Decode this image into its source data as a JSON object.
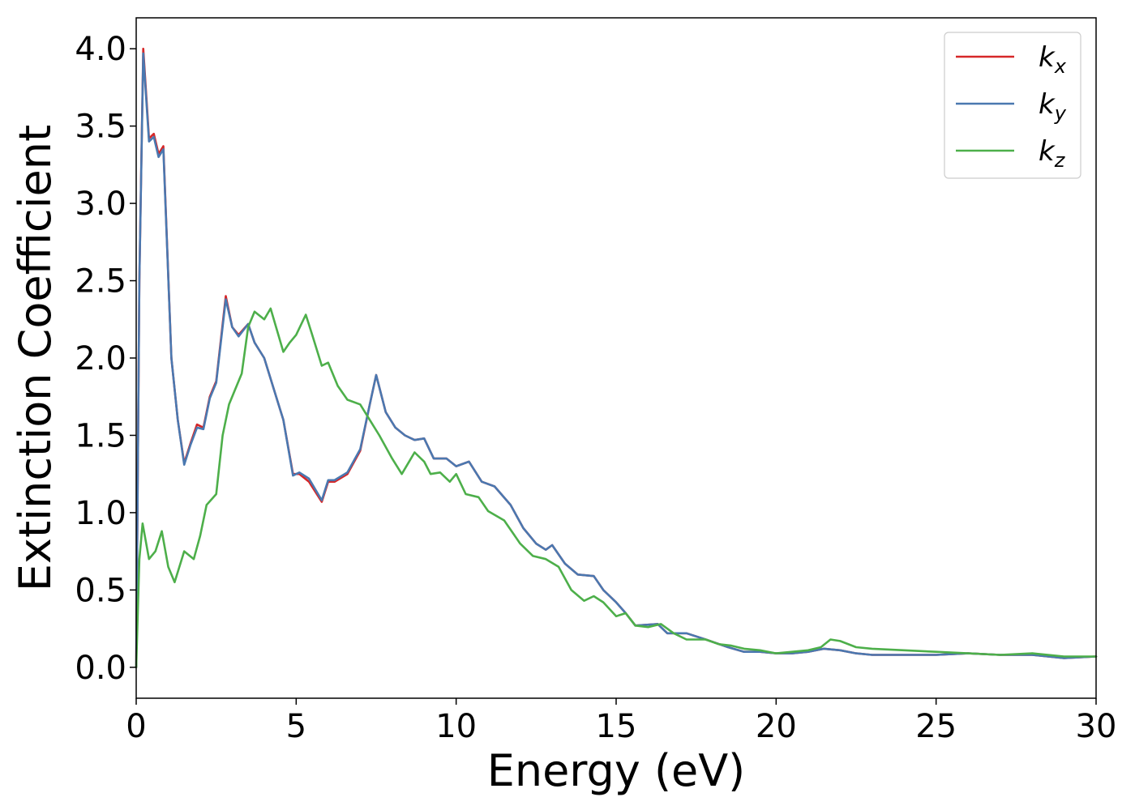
{
  "chart_data": {
    "type": "line",
    "xlabel": "Energy (eV)",
    "ylabel": "Extinction Coefficient",
    "xlim": [
      0,
      30
    ],
    "ylim": [
      -0.2,
      4.2
    ],
    "xticks": [
      0,
      5,
      10,
      15,
      20,
      25,
      30
    ],
    "xtick_labels": [
      "0",
      "5",
      "10",
      "15",
      "20",
      "25",
      "30"
    ],
    "yticks": [
      0.0,
      0.5,
      1.0,
      1.5,
      2.0,
      2.5,
      3.0,
      3.5,
      4.0
    ],
    "ytick_labels": [
      "0.0",
      "0.5",
      "1.0",
      "1.5",
      "2.0",
      "2.5",
      "3.0",
      "3.5",
      "4.0"
    ],
    "grid": false,
    "legend_position": "top-right",
    "series": [
      {
        "name": "k",
        "subscript": "x",
        "color": "#d62728",
        "points": [
          [
            0,
            0
          ],
          [
            0.1,
            2.5
          ],
          [
            0.22,
            4.0
          ],
          [
            0.4,
            3.42
          ],
          [
            0.55,
            3.45
          ],
          [
            0.7,
            3.32
          ],
          [
            0.85,
            3.37
          ],
          [
            1.1,
            2.0
          ],
          [
            1.3,
            1.6
          ],
          [
            1.5,
            1.32
          ],
          [
            1.7,
            1.45
          ],
          [
            1.9,
            1.57
          ],
          [
            2.1,
            1.55
          ],
          [
            2.3,
            1.75
          ],
          [
            2.5,
            1.85
          ],
          [
            2.8,
            2.4
          ],
          [
            3.0,
            2.2
          ],
          [
            3.2,
            2.15
          ],
          [
            3.5,
            2.22
          ],
          [
            3.7,
            2.1
          ],
          [
            4.0,
            2.0
          ],
          [
            4.3,
            1.8
          ],
          [
            4.6,
            1.6
          ],
          [
            4.9,
            1.25
          ],
          [
            5.1,
            1.25
          ],
          [
            5.4,
            1.2
          ],
          [
            5.8,
            1.07
          ],
          [
            6.0,
            1.2
          ],
          [
            6.2,
            1.2
          ],
          [
            6.6,
            1.25
          ],
          [
            7.0,
            1.4
          ],
          [
            7.3,
            1.7
          ],
          [
            7.5,
            1.89
          ],
          [
            7.8,
            1.65
          ],
          [
            8.1,
            1.55
          ],
          [
            8.4,
            1.5
          ],
          [
            8.7,
            1.47
          ],
          [
            9.0,
            1.48
          ],
          [
            9.3,
            1.35
          ],
          [
            9.7,
            1.35
          ],
          [
            10.0,
            1.3
          ],
          [
            10.4,
            1.33
          ],
          [
            10.8,
            1.2
          ],
          [
            11.2,
            1.17
          ],
          [
            11.7,
            1.05
          ],
          [
            12.1,
            0.9
          ],
          [
            12.5,
            0.8
          ],
          [
            12.8,
            0.76
          ],
          [
            13.0,
            0.79
          ],
          [
            13.4,
            0.67
          ],
          [
            13.8,
            0.6
          ],
          [
            14.3,
            0.59
          ],
          [
            14.6,
            0.5
          ],
          [
            15.0,
            0.42
          ],
          [
            15.3,
            0.35
          ],
          [
            15.6,
            0.27
          ],
          [
            16.3,
            0.28
          ],
          [
            16.6,
            0.22
          ],
          [
            17.2,
            0.22
          ],
          [
            17.8,
            0.18
          ],
          [
            18.5,
            0.13
          ],
          [
            19.0,
            0.1
          ],
          [
            19.5,
            0.1
          ],
          [
            20.0,
            0.09
          ],
          [
            20.5,
            0.09
          ],
          [
            21.0,
            0.1
          ],
          [
            21.5,
            0.12
          ],
          [
            22.0,
            0.11
          ],
          [
            22.5,
            0.09
          ],
          [
            23.0,
            0.08
          ],
          [
            24.0,
            0.08
          ],
          [
            25.0,
            0.08
          ],
          [
            26.0,
            0.09
          ],
          [
            27.0,
            0.08
          ],
          [
            28.0,
            0.08
          ],
          [
            29.0,
            0.06
          ],
          [
            30.0,
            0.07
          ]
        ]
      },
      {
        "name": "k",
        "subscript": "y",
        "color": "#4a78b0",
        "points": [
          [
            0,
            0
          ],
          [
            0.1,
            2.5
          ],
          [
            0.22,
            3.97
          ],
          [
            0.4,
            3.4
          ],
          [
            0.55,
            3.43
          ],
          [
            0.7,
            3.3
          ],
          [
            0.85,
            3.35
          ],
          [
            1.1,
            2.0
          ],
          [
            1.3,
            1.6
          ],
          [
            1.5,
            1.31
          ],
          [
            1.7,
            1.44
          ],
          [
            1.9,
            1.55
          ],
          [
            2.1,
            1.54
          ],
          [
            2.3,
            1.74
          ],
          [
            2.5,
            1.84
          ],
          [
            2.8,
            2.38
          ],
          [
            3.0,
            2.2
          ],
          [
            3.2,
            2.14
          ],
          [
            3.5,
            2.22
          ],
          [
            3.7,
            2.1
          ],
          [
            4.0,
            2.0
          ],
          [
            4.3,
            1.8
          ],
          [
            4.6,
            1.6
          ],
          [
            4.9,
            1.24
          ],
          [
            5.1,
            1.26
          ],
          [
            5.4,
            1.22
          ],
          [
            5.8,
            1.08
          ],
          [
            6.0,
            1.21
          ],
          [
            6.2,
            1.21
          ],
          [
            6.6,
            1.26
          ],
          [
            7.0,
            1.41
          ],
          [
            7.3,
            1.7
          ],
          [
            7.5,
            1.89
          ],
          [
            7.8,
            1.65
          ],
          [
            8.1,
            1.55
          ],
          [
            8.4,
            1.5
          ],
          [
            8.7,
            1.47
          ],
          [
            9.0,
            1.48
          ],
          [
            9.3,
            1.35
          ],
          [
            9.7,
            1.35
          ],
          [
            10.0,
            1.3
          ],
          [
            10.4,
            1.33
          ],
          [
            10.8,
            1.2
          ],
          [
            11.2,
            1.17
          ],
          [
            11.7,
            1.05
          ],
          [
            12.1,
            0.9
          ],
          [
            12.5,
            0.8
          ],
          [
            12.8,
            0.76
          ],
          [
            13.0,
            0.79
          ],
          [
            13.4,
            0.67
          ],
          [
            13.8,
            0.6
          ],
          [
            14.3,
            0.59
          ],
          [
            14.6,
            0.5
          ],
          [
            15.0,
            0.42
          ],
          [
            15.3,
            0.35
          ],
          [
            15.6,
            0.27
          ],
          [
            16.3,
            0.28
          ],
          [
            16.6,
            0.22
          ],
          [
            17.2,
            0.22
          ],
          [
            17.8,
            0.18
          ],
          [
            18.5,
            0.13
          ],
          [
            19.0,
            0.1
          ],
          [
            19.5,
            0.1
          ],
          [
            20.0,
            0.09
          ],
          [
            20.5,
            0.09
          ],
          [
            21.0,
            0.1
          ],
          [
            21.5,
            0.12
          ],
          [
            22.0,
            0.11
          ],
          [
            22.5,
            0.09
          ],
          [
            23.0,
            0.08
          ],
          [
            24.0,
            0.08
          ],
          [
            25.0,
            0.08
          ],
          [
            26.0,
            0.09
          ],
          [
            27.0,
            0.08
          ],
          [
            28.0,
            0.08
          ],
          [
            29.0,
            0.06
          ],
          [
            30.0,
            0.07
          ]
        ]
      },
      {
        "name": "k",
        "subscript": "z",
        "color": "#4daf4a",
        "points": [
          [
            0,
            0
          ],
          [
            0.1,
            0.7
          ],
          [
            0.2,
            0.93
          ],
          [
            0.4,
            0.7
          ],
          [
            0.6,
            0.75
          ],
          [
            0.8,
            0.88
          ],
          [
            1.0,
            0.65
          ],
          [
            1.2,
            0.55
          ],
          [
            1.5,
            0.75
          ],
          [
            1.8,
            0.7
          ],
          [
            2.0,
            0.85
          ],
          [
            2.2,
            1.05
          ],
          [
            2.5,
            1.12
          ],
          [
            2.7,
            1.5
          ],
          [
            2.9,
            1.7
          ],
          [
            3.1,
            1.8
          ],
          [
            3.3,
            1.9
          ],
          [
            3.5,
            2.2
          ],
          [
            3.7,
            2.3
          ],
          [
            4.0,
            2.25
          ],
          [
            4.2,
            2.32
          ],
          [
            4.6,
            2.04
          ],
          [
            4.8,
            2.1
          ],
          [
            5.0,
            2.15
          ],
          [
            5.3,
            2.28
          ],
          [
            5.5,
            2.15
          ],
          [
            5.8,
            1.95
          ],
          [
            6.0,
            1.97
          ],
          [
            6.3,
            1.82
          ],
          [
            6.6,
            1.73
          ],
          [
            7.0,
            1.7
          ],
          [
            7.3,
            1.6
          ],
          [
            7.6,
            1.5
          ],
          [
            8.0,
            1.35
          ],
          [
            8.3,
            1.25
          ],
          [
            8.7,
            1.39
          ],
          [
            9.0,
            1.33
          ],
          [
            9.2,
            1.25
          ],
          [
            9.5,
            1.26
          ],
          [
            9.8,
            1.2
          ],
          [
            10.0,
            1.25
          ],
          [
            10.3,
            1.12
          ],
          [
            10.7,
            1.1
          ],
          [
            11.0,
            1.01
          ],
          [
            11.5,
            0.95
          ],
          [
            12.0,
            0.8
          ],
          [
            12.4,
            0.72
          ],
          [
            12.8,
            0.7
          ],
          [
            13.2,
            0.65
          ],
          [
            13.6,
            0.5
          ],
          [
            14.0,
            0.43
          ],
          [
            14.3,
            0.46
          ],
          [
            14.6,
            0.42
          ],
          [
            15.0,
            0.33
          ],
          [
            15.3,
            0.35
          ],
          [
            15.6,
            0.27
          ],
          [
            16.0,
            0.26
          ],
          [
            16.4,
            0.28
          ],
          [
            16.8,
            0.22
          ],
          [
            17.2,
            0.18
          ],
          [
            17.8,
            0.18
          ],
          [
            18.2,
            0.15
          ],
          [
            18.6,
            0.14
          ],
          [
            19.0,
            0.12
          ],
          [
            19.5,
            0.11
          ],
          [
            20.0,
            0.09
          ],
          [
            20.5,
            0.1
          ],
          [
            21.0,
            0.11
          ],
          [
            21.4,
            0.13
          ],
          [
            21.7,
            0.18
          ],
          [
            22.0,
            0.17
          ],
          [
            22.5,
            0.13
          ],
          [
            23.0,
            0.12
          ],
          [
            24.0,
            0.11
          ],
          [
            25.0,
            0.1
          ],
          [
            26.0,
            0.09
          ],
          [
            27.0,
            0.08
          ],
          [
            28.0,
            0.09
          ],
          [
            29.0,
            0.07
          ],
          [
            30.0,
            0.07
          ]
        ]
      }
    ]
  }
}
